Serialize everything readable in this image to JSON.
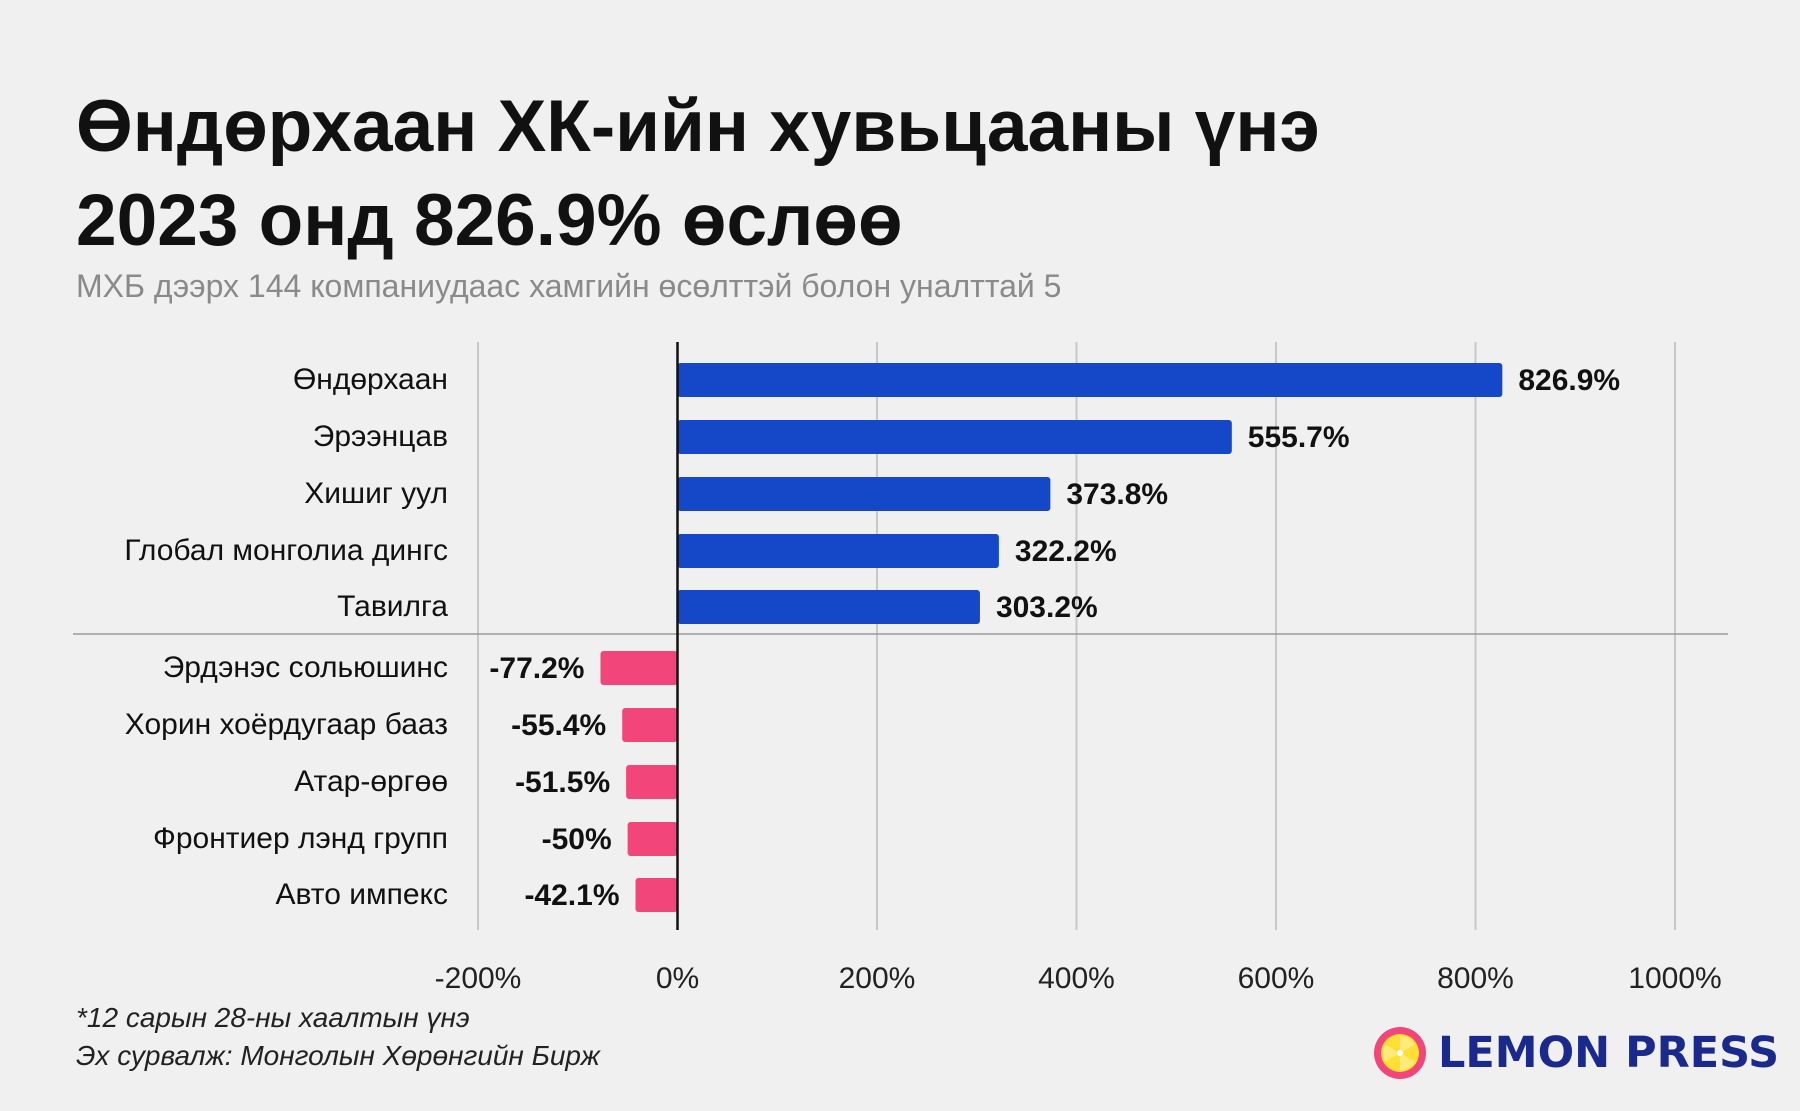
{
  "title_line1": "Өндөрхаан ХК-ийн хувьцааны үнэ",
  "title_line2": "2023 онд 826.9% өслөө",
  "subtitle": "МХБ дээрх 144 компаниудаас хамгийн өсөлттэй болон уналттай 5",
  "footnote1": "*12 сарын 28-ны хаалтын үнэ",
  "footnote2": "Эх сурвалж: Монголын Хөрөнгийн Бирж",
  "logo": {
    "text": "LEMON PRESS",
    "icon": "lemon-slice-icon"
  },
  "colors": {
    "positive": "#1448c8",
    "negative": "#f2467a",
    "grid": "#c8c8c8",
    "zero": "#111111"
  },
  "chart_data": {
    "type": "bar",
    "orientation": "horizontal",
    "categories": [
      "Өндөрхаан",
      "Эрээнцав",
      "Хишиг уул",
      "Глобал монголиа дингс",
      "Тавилга",
      "Эрдэнэс сольюшинс",
      "Хорин хоёрдугаар бааз",
      "Атар-өргөө",
      "Фронтиер лэнд групп",
      "Авто импекс"
    ],
    "values": [
      826.9,
      555.7,
      373.8,
      322.2,
      303.2,
      -77.2,
      -55.4,
      -51.5,
      -50,
      -42.1
    ],
    "labels": [
      "826.9%",
      "555.7%",
      "373.8%",
      "322.2%",
      "303.2%",
      "-77.2%",
      "-55.4%",
      "-51.5%",
      "-50%",
      "-42.1%"
    ],
    "xlim": [
      -200,
      1000
    ],
    "xticks": [
      -200,
      0,
      200,
      400,
      600,
      800,
      1000
    ],
    "xtick_labels": [
      "-200%",
      "0%",
      "200%",
      "400%",
      "600%",
      "800%",
      "1000%"
    ],
    "grid": true
  }
}
